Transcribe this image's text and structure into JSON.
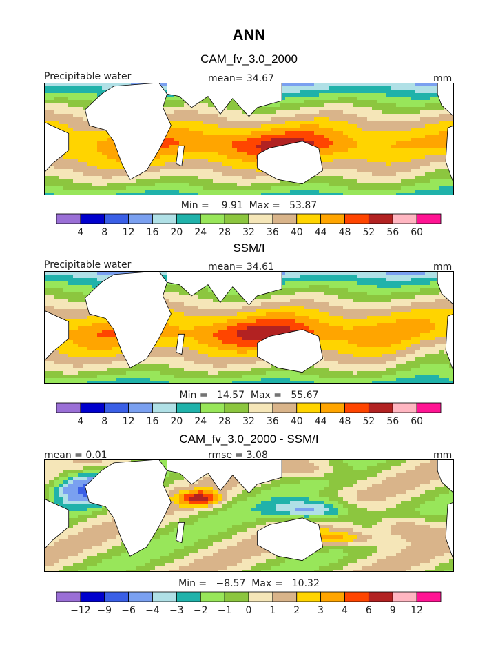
{
  "page_title": "ANN",
  "colors": {
    "palette": [
      "#9A6FD6",
      "#0000CD",
      "#3A5FE6",
      "#7AA0F0",
      "#B0E0E6",
      "#20B2AA",
      "#98E65A",
      "#8CC63F",
      "#F5E6B8",
      "#D9B48A",
      "#FFD400",
      "#FFA500",
      "#FF4500",
      "#B22222",
      "#FFB6C1",
      "#FF1493"
    ],
    "land": "#FFFFFF",
    "coast": "#000000"
  },
  "chart_data": [
    {
      "type": "heatmap",
      "title": "CAM_fv_3.0_2000",
      "field_label": "Precipitable water",
      "stat_label": "mean=   34.67",
      "units_label": "mm",
      "minmax_label": "Min =    9.91  Max =   53.87",
      "min": 9.91,
      "max": 53.87,
      "mean": 34.67,
      "colorbar_ticks": [
        "4",
        "8",
        "12",
        "16",
        "20",
        "24",
        "28",
        "32",
        "36",
        "40",
        "44",
        "48",
        "52",
        "56",
        "60"
      ]
    },
    {
      "type": "heatmap",
      "title": "SSM/I",
      "field_label": "Precipitable water",
      "stat_label": "mean=   34.61",
      "units_label": "mm",
      "minmax_label": "Min =   14.57  Max =   55.67",
      "min": 14.57,
      "max": 55.67,
      "mean": 34.61,
      "colorbar_ticks": [
        "4",
        "8",
        "12",
        "16",
        "20",
        "24",
        "28",
        "32",
        "36",
        "40",
        "44",
        "48",
        "52",
        "56",
        "60"
      ]
    },
    {
      "type": "heatmap",
      "title": "CAM_fv_3.0_2000 - SSM/I",
      "field_label": "mean =    0.01",
      "stat_label": "rmse =    3.08",
      "units_label": "mm",
      "minmax_label": "Min =   −8.57  Max =   10.32",
      "min": -8.57,
      "max": 10.32,
      "mean": 0.01,
      "rmse": 3.08,
      "colorbar_ticks": [
        "−12",
        "−9",
        "−6",
        "−4",
        "−3",
        "−2",
        "−1",
        "0",
        "1",
        "2",
        "3",
        "4",
        "6",
        "9",
        "12"
      ]
    }
  ]
}
